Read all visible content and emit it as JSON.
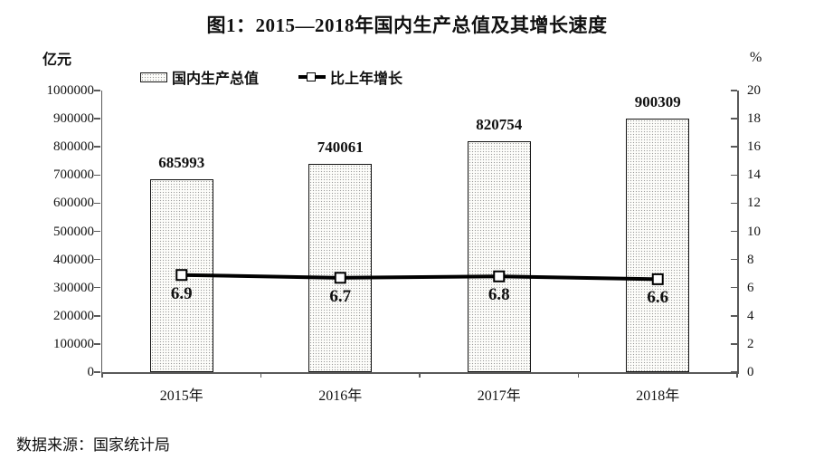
{
  "page": {
    "title": "图1：2015—2018年国内生产总值及其增长速度",
    "source": "数据来源：国家统计局"
  },
  "chart_data": {
    "type": "bar",
    "title": "图1：2015—2018年国内生产总值及其增长速度",
    "categories": [
      "2015年",
      "2016年",
      "2017年",
      "2018年"
    ],
    "series": [
      {
        "name": "国内生产总值",
        "type": "bar",
        "axis": "left",
        "unit": "亿元",
        "values": [
          685993,
          740061,
          820754,
          900309
        ]
      },
      {
        "name": "比上年增长",
        "type": "line",
        "axis": "right",
        "unit": "%",
        "values": [
          6.9,
          6.7,
          6.8,
          6.6
        ]
      }
    ],
    "left_axis": {
      "label": "亿元",
      "min": 0,
      "max": 1000000,
      "step": 100000,
      "ticks": [
        0,
        100000,
        200000,
        300000,
        400000,
        500000,
        600000,
        700000,
        800000,
        900000,
        1000000
      ]
    },
    "right_axis": {
      "label": "%",
      "min": 0,
      "max": 20,
      "step": 2,
      "ticks": [
        0,
        2,
        4,
        6,
        8,
        10,
        12,
        14,
        16,
        18,
        20
      ]
    },
    "legend_position": "top",
    "grid": false,
    "source": "数据来源：国家统计局"
  }
}
